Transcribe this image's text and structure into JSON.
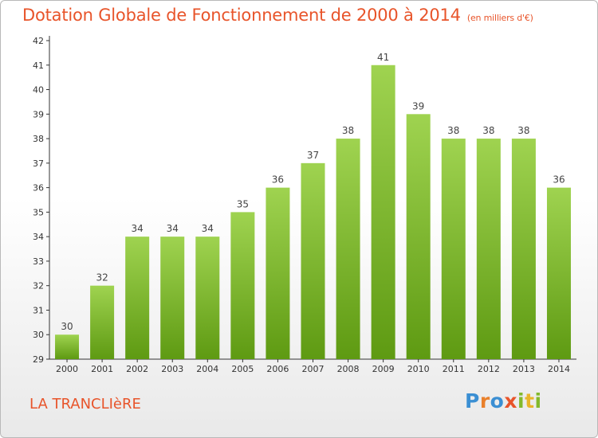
{
  "chart_data": {
    "type": "bar",
    "title": "Dotation Globale de Fonctionnement de 2000 à 2014",
    "subtitle": "(en milliers d'€)",
    "xlabel": "",
    "ylabel": "",
    "categories": [
      "2000",
      "2001",
      "2002",
      "2003",
      "2004",
      "2005",
      "2006",
      "2007",
      "2008",
      "2009",
      "2010",
      "2011",
      "2012",
      "2013",
      "2014"
    ],
    "values": [
      30,
      32,
      34,
      34,
      34,
      35,
      36,
      37,
      38,
      41,
      39,
      38,
      38,
      38,
      36
    ],
    "yticks": [
      29,
      30,
      31,
      32,
      33,
      34,
      35,
      36,
      37,
      38,
      39,
      40,
      41,
      42
    ],
    "ylim": [
      29,
      42
    ],
    "grid": false,
    "bar_color": "#7cbf2a",
    "title_color": "#e8542a"
  },
  "footer": {
    "commune": "LA TRANCLIèRE",
    "logo": [
      "P",
      "r",
      "o",
      "x",
      "i",
      "t",
      "i"
    ],
    "logo_colors": [
      "#3b8fd3",
      "#e9802b",
      "#3b8fd3",
      "#e8542a",
      "#83b92c",
      "#e9b52b",
      "#83b92c"
    ]
  }
}
